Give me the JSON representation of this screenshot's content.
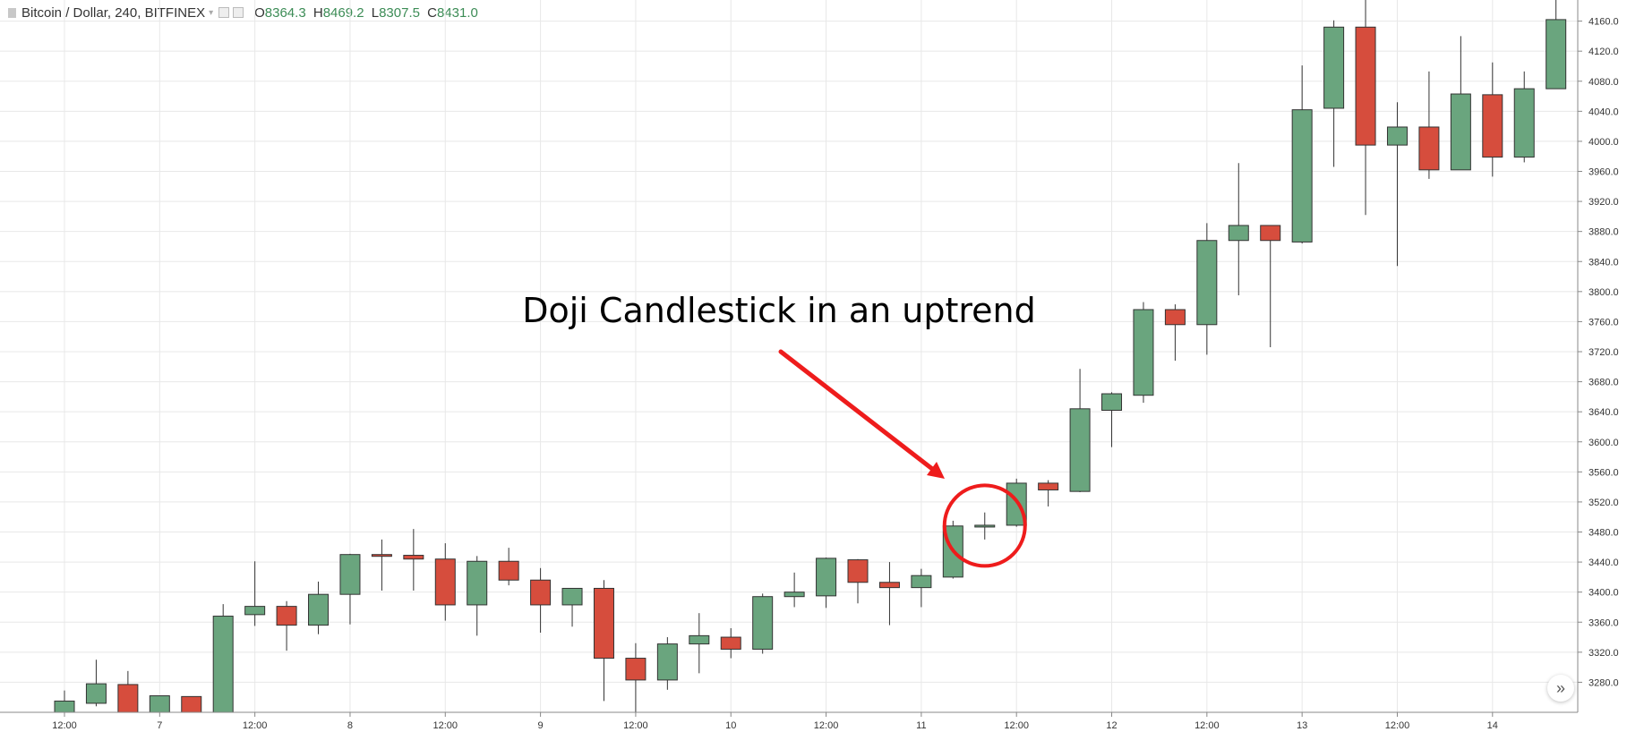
{
  "header": {
    "symbol": "Bitcoin / Dollar, 240, BITFINEX",
    "open_label": "O",
    "open": "8364.3",
    "high_label": "H",
    "high": "8469.2",
    "low_label": "L",
    "low": "8307.5",
    "close_label": "C",
    "close": "8431.0"
  },
  "annotation": {
    "text": "Doji Candlestick in an uptrend",
    "color": "#ee1c1c"
  },
  "colors": {
    "up": "#6aa57e",
    "down": "#d64d3d",
    "wick": "#333333",
    "grid": "#e8e8e8"
  },
  "chart_data": {
    "type": "candlestick",
    "ylim": [
      3240,
      4200
    ],
    "y_ticks": [
      3280,
      3320,
      3360,
      3400,
      3440,
      3480,
      3520,
      3560,
      3600,
      3640,
      3680,
      3720,
      3760,
      3800,
      3840,
      3880,
      3920,
      3960,
      4000,
      4040,
      4080,
      4120,
      4160
    ],
    "x_ticks": [
      {
        "label": "12:00",
        "index": 0
      },
      {
        "label": "7",
        "index": 3
      },
      {
        "label": "12:00",
        "index": 6
      },
      {
        "label": "8",
        "index": 9
      },
      {
        "label": "12:00",
        "index": 12
      },
      {
        "label": "9",
        "index": 15
      },
      {
        "label": "12:00",
        "index": 18
      },
      {
        "label": "10",
        "index": 21
      },
      {
        "label": "12:00",
        "index": 24
      },
      {
        "label": "11",
        "index": 27
      },
      {
        "label": "12:00",
        "index": 30
      },
      {
        "label": "12",
        "index": 33
      },
      {
        "label": "12:00",
        "index": 36
      },
      {
        "label": "13",
        "index": 39
      },
      {
        "label": "12:00",
        "index": 42
      },
      {
        "label": "14",
        "index": 45
      }
    ],
    "candles": [
      {
        "o": 3240,
        "h": 3269,
        "l": 3237,
        "c": 3255
      },
      {
        "o": 3252,
        "h": 3310,
        "l": 3248,
        "c": 3278
      },
      {
        "o": 3277,
        "h": 3295,
        "l": 3240,
        "c": 3240
      },
      {
        "o": 3240,
        "h": 3262,
        "l": 3238,
        "c": 3262
      },
      {
        "o": 3261,
        "h": 3261,
        "l": 3240,
        "c": 3240
      },
      {
        "o": 3240,
        "h": 3384,
        "l": 3240,
        "c": 3368
      },
      {
        "o": 3370,
        "h": 3441,
        "l": 3355,
        "c": 3381
      },
      {
        "o": 3381,
        "h": 3388,
        "l": 3322,
        "c": 3356
      },
      {
        "o": 3356,
        "h": 3414,
        "l": 3344,
        "c": 3397
      },
      {
        "o": 3397,
        "h": 3451,
        "l": 3357,
        "c": 3450
      },
      {
        "o": 3450,
        "h": 3470,
        "l": 3402,
        "c": 3449
      },
      {
        "o": 3449,
        "h": 3484,
        "l": 3402,
        "c": 3444
      },
      {
        "o": 3444,
        "h": 3465,
        "l": 3362,
        "c": 3383
      },
      {
        "o": 3383,
        "h": 3448,
        "l": 3342,
        "c": 3441
      },
      {
        "o": 3441,
        "h": 3459,
        "l": 3409,
        "c": 3416
      },
      {
        "o": 3416,
        "h": 3432,
        "l": 3346,
        "c": 3383
      },
      {
        "o": 3383,
        "h": 3405,
        "l": 3354,
        "c": 3405
      },
      {
        "o": 3405,
        "h": 3416,
        "l": 3255,
        "c": 3312
      },
      {
        "o": 3312,
        "h": 3332,
        "l": 3236,
        "c": 3283
      },
      {
        "o": 3283,
        "h": 3340,
        "l": 3270,
        "c": 3331
      },
      {
        "o": 3331,
        "h": 3372,
        "l": 3292,
        "c": 3342
      },
      {
        "o": 3340,
        "h": 3352,
        "l": 3312,
        "c": 3324
      },
      {
        "o": 3324,
        "h": 3398,
        "l": 3318,
        "c": 3394
      },
      {
        "o": 3394,
        "h": 3426,
        "l": 3380,
        "c": 3400
      },
      {
        "o": 3395,
        "h": 3446,
        "l": 3379,
        "c": 3445
      },
      {
        "o": 3443,
        "h": 3444,
        "l": 3385,
        "c": 3413
      },
      {
        "o": 3413,
        "h": 3440,
        "l": 3356,
        "c": 3406
      },
      {
        "o": 3406,
        "h": 3431,
        "l": 3380,
        "c": 3422
      },
      {
        "o": 3420,
        "h": 3495,
        "l": 3418,
        "c": 3488
      },
      {
        "o": 3488,
        "h": 3506,
        "l": 3470,
        "c": 3489
      },
      {
        "o": 3489,
        "h": 3551,
        "l": 3487,
        "c": 3545
      },
      {
        "o": 3545,
        "h": 3549,
        "l": 3514,
        "c": 3536
      },
      {
        "o": 3534,
        "h": 3697,
        "l": 3533,
        "c": 3644
      },
      {
        "o": 3642,
        "h": 3666,
        "l": 3593,
        "c": 3664
      },
      {
        "o": 3662,
        "h": 3786,
        "l": 3652,
        "c": 3776
      },
      {
        "o": 3776,
        "h": 3783,
        "l": 3708,
        "c": 3756
      },
      {
        "o": 3756,
        "h": 3891,
        "l": 3716,
        "c": 3868
      },
      {
        "o": 3868,
        "h": 3971,
        "l": 3795,
        "c": 3888
      },
      {
        "o": 3888,
        "h": 3888,
        "l": 3726,
        "c": 3868
      },
      {
        "o": 3866,
        "h": 4101,
        "l": 3864,
        "c": 4042
      },
      {
        "o": 4044,
        "h": 4161,
        "l": 3966,
        "c": 4152
      },
      {
        "o": 4152,
        "h": 4194,
        "l": 3902,
        "c": 3995
      },
      {
        "o": 3995,
        "h": 4052,
        "l": 3834,
        "c": 4019
      },
      {
        "o": 4019,
        "h": 4093,
        "l": 3950,
        "c": 3962
      },
      {
        "o": 3962,
        "h": 4140,
        "l": 3962,
        "c": 4063
      },
      {
        "o": 4062,
        "h": 4105,
        "l": 3953,
        "c": 3979
      },
      {
        "o": 3979,
        "h": 4093,
        "l": 3972,
        "c": 4070
      },
      {
        "o": 4070,
        "h": 4200,
        "l": 4070,
        "c": 4162
      }
    ]
  }
}
